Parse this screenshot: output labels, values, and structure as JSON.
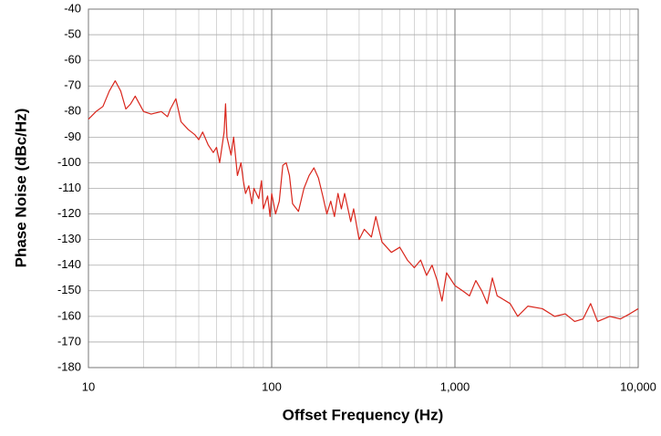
{
  "chart_data": {
    "type": "line",
    "x_label": "Offset Frequency (Hz)",
    "y_label": "Phase Noise (dBc/Hz)",
    "x_log": true,
    "grid": true,
    "xlim": [
      10,
      10000
    ],
    "ylim": [
      -180,
      -40
    ],
    "xticks": [
      10,
      100,
      {
        "value": 1000,
        "label": "1,000"
      },
      {
        "value": 10000,
        "label": "10,000"
      }
    ],
    "x_minor_gridlines": [
      20,
      30,
      40,
      50,
      60,
      70,
      80,
      90,
      200,
      300,
      400,
      500,
      600,
      700,
      800,
      900,
      2000,
      3000,
      4000,
      5000,
      6000,
      7000,
      8000,
      9000
    ],
    "yticks": [
      -180,
      -170,
      -160,
      -150,
      -140,
      -130,
      -120,
      -110,
      -100,
      -90,
      -80,
      -70,
      -60,
      -50,
      -40
    ],
    "series": [
      {
        "color": "#d9261c",
        "x": [
          10,
          11,
          12,
          13,
          14,
          15,
          16,
          17,
          18,
          20,
          22,
          25,
          27,
          28,
          30,
          32,
          35,
          38,
          40,
          42,
          45,
          48,
          50,
          52,
          55,
          56,
          57,
          60,
          62,
          65,
          68,
          70,
          72,
          75,
          78,
          80,
          85,
          88,
          90,
          95,
          98,
          100,
          105,
          110,
          115,
          120,
          125,
          130,
          140,
          150,
          160,
          170,
          180,
          190,
          200,
          210,
          220,
          230,
          240,
          250,
          270,
          280,
          300,
          320,
          350,
          370,
          400,
          450,
          500,
          550,
          600,
          650,
          700,
          750,
          800,
          850,
          900,
          1000,
          1100,
          1200,
          1300,
          1400,
          1500,
          1600,
          1700,
          1800,
          2000,
          2200,
          2500,
          3000,
          3500,
          4000,
          4500,
          5000,
          5500,
          6000,
          7000,
          8000,
          9000,
          10000
        ],
        "values": [
          -83,
          -80,
          -78,
          -72,
          -68,
          -72,
          -79,
          -77,
          -74,
          -80,
          -81,
          -80,
          -82,
          -79,
          -75,
          -84,
          -87,
          -89,
          -91,
          -88,
          -93,
          -96,
          -94,
          -100,
          -88,
          -77,
          -90,
          -97,
          -90,
          -105,
          -100,
          -107,
          -112,
          -109,
          -116,
          -110,
          -114,
          -107,
          -118,
          -113,
          -121,
          -112,
          -120,
          -115,
          -101,
          -100,
          -105,
          -116,
          -119,
          -110,
          -105,
          -102,
          -106,
          -113,
          -120,
          -115,
          -121,
          -112,
          -118,
          -112,
          -123,
          -118,
          -130,
          -126,
          -129,
          -121,
          -131,
          -135,
          -133,
          -138,
          -141,
          -138,
          -144,
          -140,
          -146,
          -154,
          -143,
          -148,
          -150,
          -152,
          -146,
          -150,
          -155,
          -145,
          -152,
          -153,
          -155,
          -160,
          -156,
          -157,
          -160,
          -159,
          -162,
          -161,
          -155,
          -162,
          -160,
          -161,
          -159,
          -157
        ]
      }
    ]
  }
}
